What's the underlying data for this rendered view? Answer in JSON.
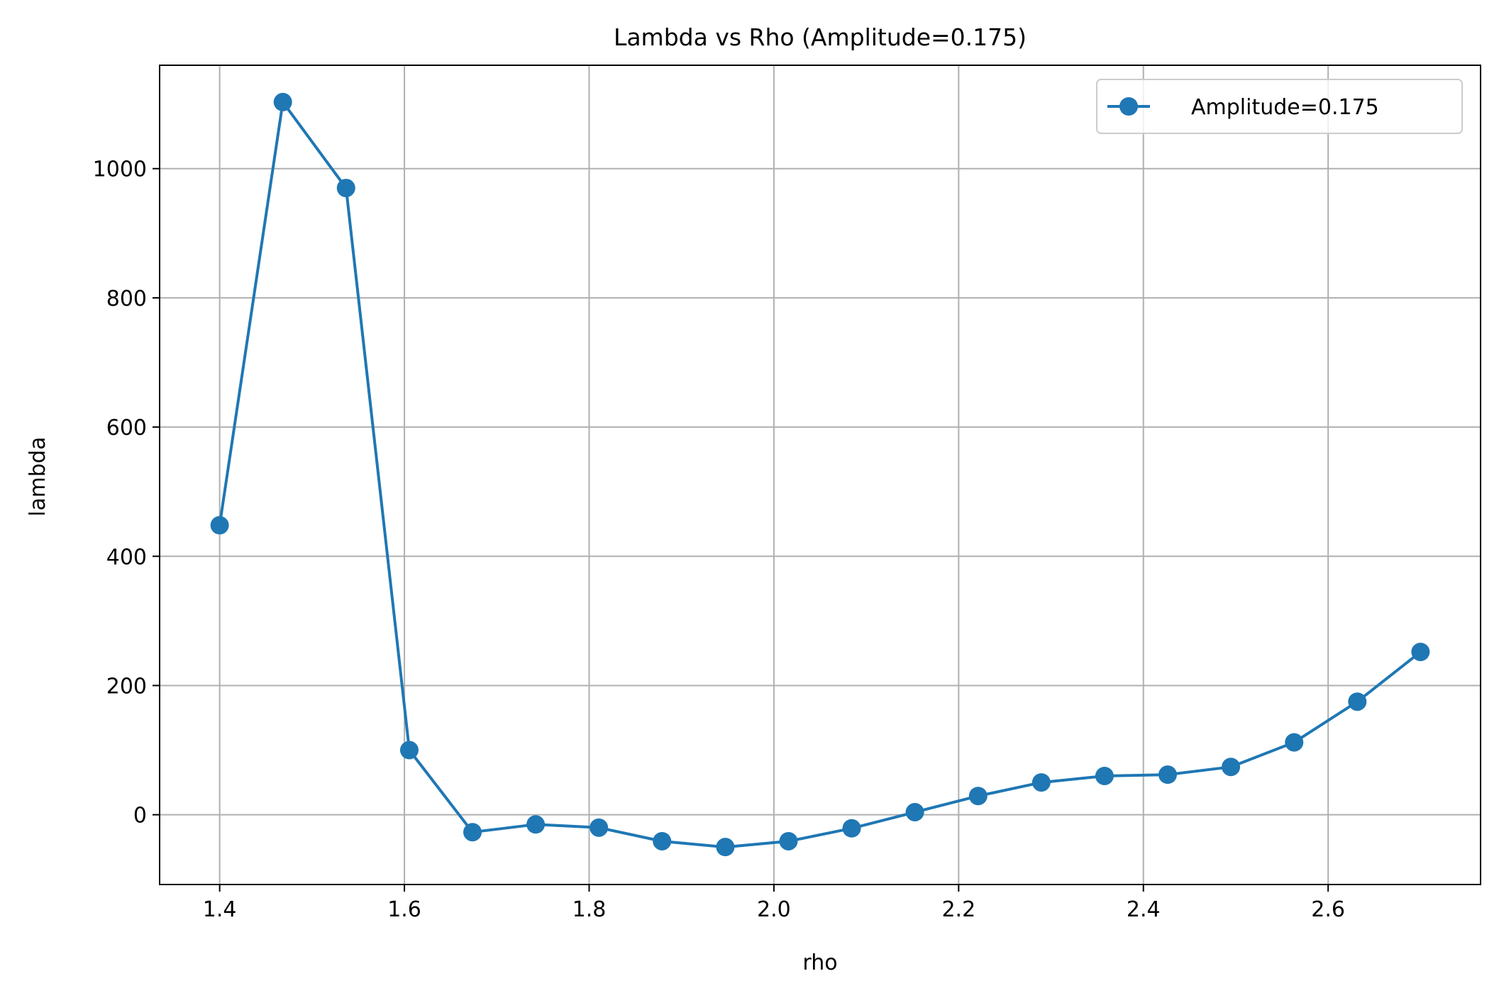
{
  "chart_data": {
    "type": "line",
    "title": "Lambda vs Rho (Amplitude=0.175)",
    "xlabel": "rho",
    "ylabel": "lambda",
    "xlim": [
      1.335,
      2.765
    ],
    "ylim": [
      -108,
      1160
    ],
    "xticks": [
      1.4,
      1.6,
      1.8,
      2.0,
      2.2,
      2.4,
      2.6
    ],
    "xtick_labels": [
      "1.4",
      "1.6",
      "1.8",
      "2.0",
      "2.2",
      "2.4",
      "2.6"
    ],
    "yticks": [
      0,
      200,
      400,
      600,
      800,
      1000
    ],
    "ytick_labels": [
      "0",
      "200",
      "400",
      "600",
      "800",
      "1000"
    ],
    "grid": true,
    "legend_position": "top-right",
    "series": [
      {
        "name": "Amplitude=0.175",
        "color": "#1f77b4",
        "marker": "circle",
        "x": [
          1.4,
          1.4684,
          1.5368,
          1.6053,
          1.6737,
          1.7421,
          1.8105,
          1.8789,
          1.9474,
          2.0158,
          2.0842,
          2.1526,
          2.2211,
          2.2895,
          2.3579,
          2.4263,
          2.4947,
          2.5632,
          2.6316,
          2.7
        ],
        "y": [
          448,
          1103,
          970,
          100,
          -27,
          -15,
          -20,
          -41,
          -50,
          -41,
          -21,
          4,
          29,
          50,
          60,
          62,
          74,
          112,
          175,
          252
        ]
      }
    ]
  }
}
